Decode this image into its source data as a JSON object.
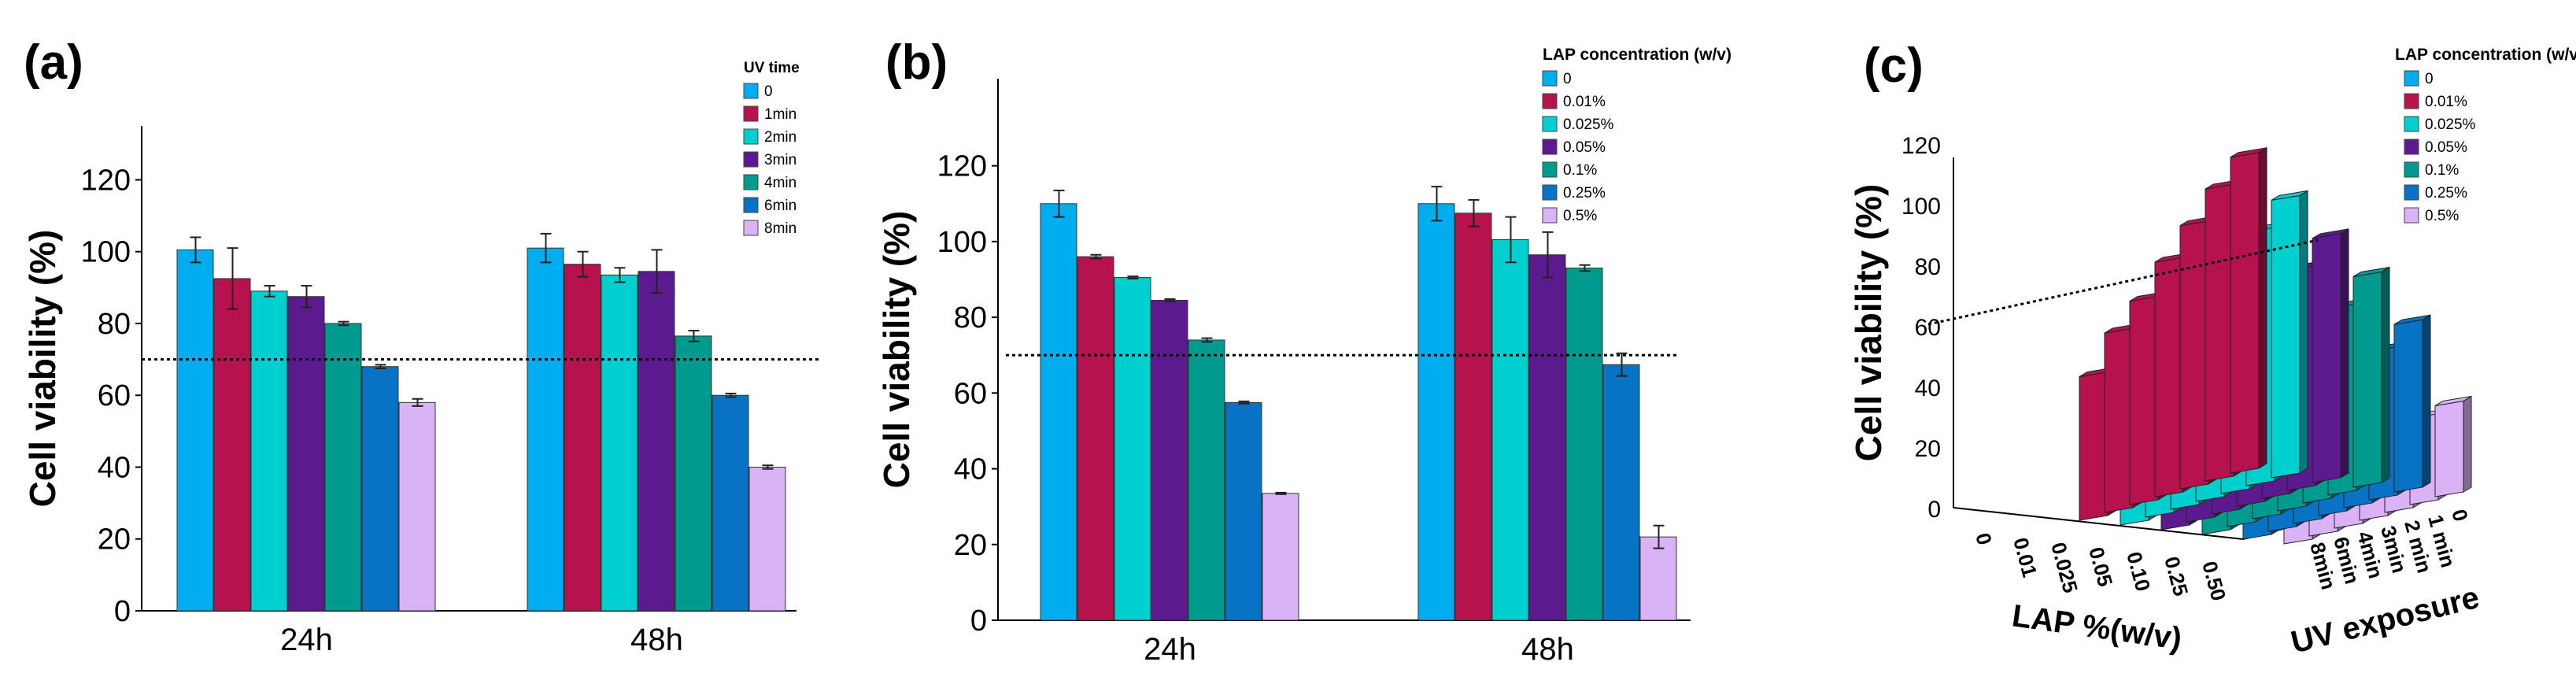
{
  "colors": {
    "series": [
      "#00AEEF",
      "#B5124E",
      "#00CFCF",
      "#5B1A8E",
      "#009B8F",
      "#0873C4",
      "#D9B3F5"
    ],
    "threshold": "#000000",
    "axis": "#000000"
  },
  "chart_data": [
    {
      "panel": "(a)",
      "type": "bar",
      "title": "",
      "xlabel": "",
      "ylabel": "Cell viability (%)",
      "ylim": [
        0,
        135
      ],
      "yticks": [
        "0",
        "20",
        "40",
        "60",
        "80",
        "100",
        "120"
      ],
      "categories": [
        "24h",
        "48h"
      ],
      "legend_title": "UV time",
      "threshold": 70,
      "series": [
        {
          "name": "0",
          "values": [
            100.5,
            101
          ],
          "errors": [
            3.5,
            4
          ]
        },
        {
          "name": "1min",
          "values": [
            92.5,
            96.5
          ],
          "errors": [
            8.5,
            3.5
          ]
        },
        {
          "name": "2min",
          "values": [
            89,
            93.5
          ],
          "errors": [
            1.5,
            2
          ]
        },
        {
          "name": "3min",
          "values": [
            87.5,
            94.5
          ],
          "errors": [
            3,
            6
          ]
        },
        {
          "name": "4min",
          "values": [
            80,
            76.5
          ],
          "errors": [
            0.5,
            1.5
          ]
        },
        {
          "name": "6min",
          "values": [
            68,
            60
          ],
          "errors": [
            0.5,
            0.5
          ]
        },
        {
          "name": "8min",
          "values": [
            58,
            40
          ],
          "errors": [
            1,
            0.5
          ]
        }
      ]
    },
    {
      "panel": "(b)",
      "type": "bar",
      "title": "",
      "xlabel": "",
      "ylabel": "Cell viability (%)",
      "ylim": [
        0,
        143
      ],
      "yticks": [
        "0",
        "20",
        "40",
        "60",
        "80",
        "100",
        "120"
      ],
      "categories": [
        "24h",
        "48h"
      ],
      "legend_title": "LAP concentration (w/v)",
      "threshold": 70,
      "series": [
        {
          "name": "0",
          "values": [
            110,
            110
          ],
          "errors": [
            3.5,
            4.5
          ]
        },
        {
          "name": "0.01%",
          "values": [
            96,
            107.5
          ],
          "errors": [
            0.5,
            3.5
          ]
        },
        {
          "name": "0.025%",
          "values": [
            90.5,
            100.5
          ],
          "errors": [
            0.3,
            6
          ]
        },
        {
          "name": "0.05%",
          "values": [
            84.5,
            96.5
          ],
          "errors": [
            0.3,
            6
          ]
        },
        {
          "name": "0.1%",
          "values": [
            74,
            93
          ],
          "errors": [
            0.5,
            0.8
          ]
        },
        {
          "name": "0.25%",
          "values": [
            57.5,
            67.5
          ],
          "errors": [
            0.3,
            3
          ]
        },
        {
          "name": "0.5%",
          "values": [
            33.5,
            22
          ],
          "errors": [
            0.2,
            3
          ]
        }
      ]
    },
    {
      "panel": "(c)",
      "type": "bar3d",
      "ylabel": "Cell viability (%)",
      "xlabel": "LAP %(w/v)",
      "zlabel": "UV exposure",
      "ylim": [
        0,
        130
      ],
      "yticks": [
        "0",
        "20",
        "40",
        "60",
        "80",
        "100",
        "120"
      ],
      "x_categories": [
        "0",
        "0.01",
        "0.025",
        "0.05",
        "0.10",
        "0.25",
        "0.50"
      ],
      "z_categories": [
        "0",
        "1 min",
        "2 min",
        "3min",
        "4min",
        "6min",
        "8min"
      ],
      "legend_title": "LAP concentration (w/v)",
      "legend": [
        "0",
        "0.01%",
        "0.025%",
        "0.05%",
        "0.1%",
        "0.25%",
        "0.5%"
      ],
      "threshold_line": "dotted line at cell viability ~70%",
      "series": [
        {
          "name": "0",
          "values": [
            null,
            null,
            null,
            null,
            null,
            null,
            null
          ]
        },
        {
          "name": "0.01%",
          "values": [
            60,
            75,
            85,
            98,
            110,
            122,
            132
          ]
        },
        {
          "name": "0.025%",
          "values": [
            48,
            62,
            73,
            84,
            94,
            106,
            116
          ]
        },
        {
          "name": "0.05%",
          "values": [
            42,
            52,
            64,
            76,
            86,
            92,
            102
          ]
        },
        {
          "name": "0.1%",
          "values": [
            36,
            44,
            52,
            58,
            68,
            78,
            88
          ]
        },
        {
          "name": "0.25%",
          "values": [
            30,
            36,
            42,
            50,
            54,
            62,
            70
          ]
        },
        {
          "name": "0.5%",
          "values": [
            26,
            28,
            30,
            32,
            34,
            36,
            38
          ]
        }
      ]
    }
  ]
}
